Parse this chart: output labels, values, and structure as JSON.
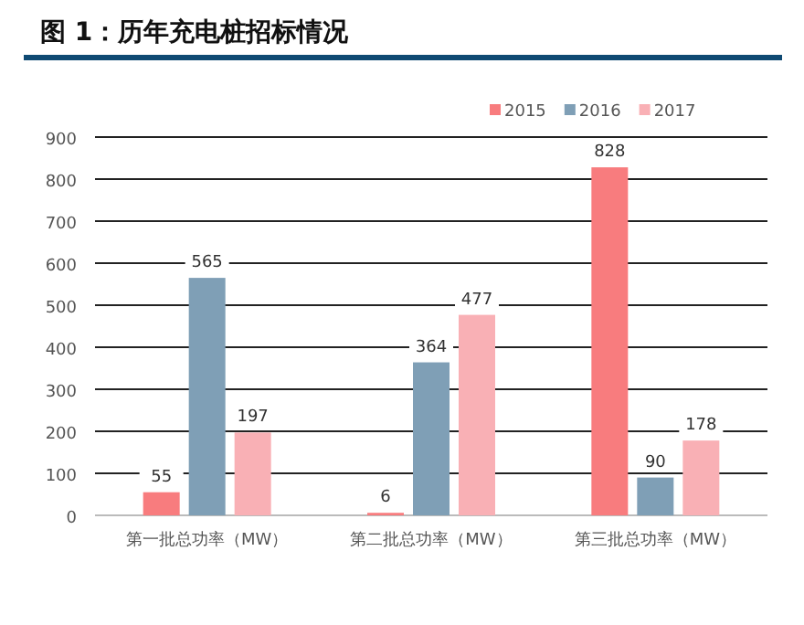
{
  "chart_data": {
    "type": "bar",
    "title": "图 1：历年充电桩招标情况",
    "categories": [
      "第一批总功率（MW）",
      "第二批总功率（MW）",
      "第三批总功率（MW）"
    ],
    "series": [
      {
        "name": "2015",
        "color": "#f87c7e",
        "values": [
          55,
          6,
          828
        ]
      },
      {
        "name": "2016",
        "color": "#7f9fb6",
        "values": [
          565,
          364,
          90
        ]
      },
      {
        "name": "2017",
        "color": "#f9b0b5",
        "values": [
          197,
          477,
          178
        ]
      }
    ],
    "ylim": [
      0,
      900
    ],
    "yticks": [
      0,
      100,
      200,
      300,
      400,
      500,
      600,
      700,
      800,
      900
    ],
    "grid": "y",
    "legend": "top right",
    "data_labels": true
  }
}
